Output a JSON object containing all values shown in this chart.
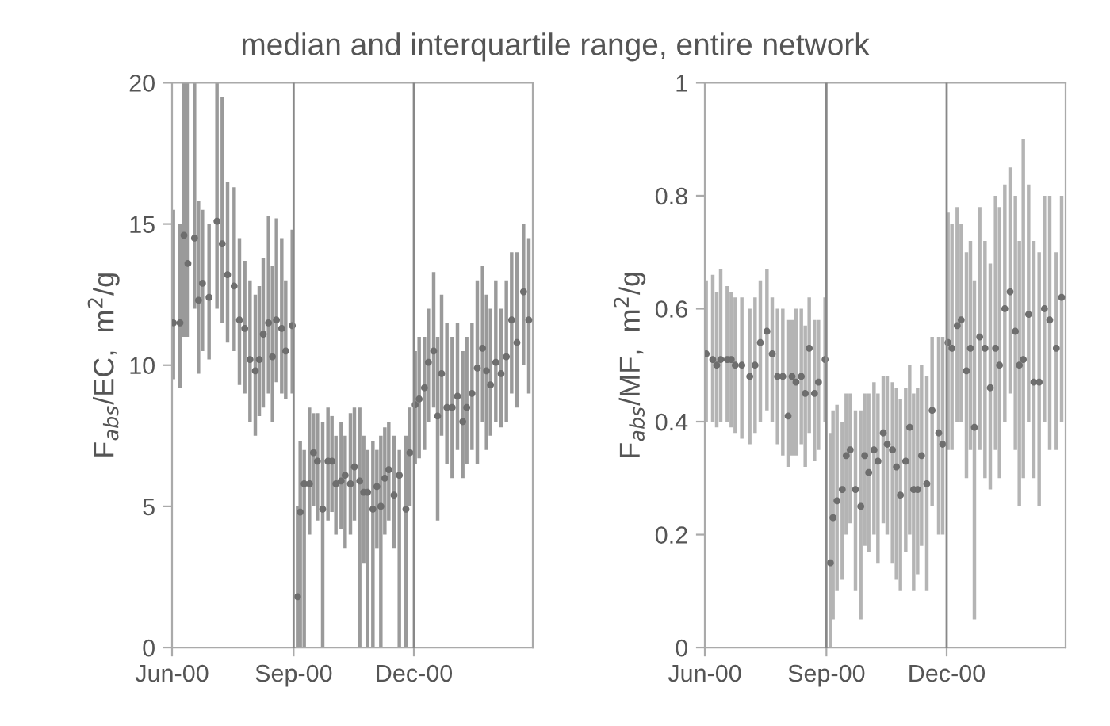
{
  "chart_data": [
    {
      "type": "scatter",
      "title": "median and interquartile range, entire network",
      "ylabel": "F$_{abs}$/EC,  m$^{2}$/g",
      "marker": "circle",
      "grid": false,
      "legend": false,
      "xlim": [
        "2000-06-01",
        "2001-03-01"
      ],
      "xticks": [
        {
          "value": "2000-06-01",
          "label": "Jun-00"
        },
        {
          "value": "2000-09-01",
          "label": "Sep-00"
        },
        {
          "value": "2000-12-01",
          "label": "Dec-00"
        }
      ],
      "ylim": [
        0,
        20
      ],
      "yticks": [
        0,
        5,
        10,
        15,
        20
      ],
      "ref_lines": [
        {
          "axis": "x",
          "value": "2000-09-01",
          "color": "#888888"
        },
        {
          "axis": "x",
          "value": "2000-12-01",
          "color": "#888888"
        }
      ],
      "series": [
        {
          "color": "#6e6e6e",
          "x": [
            "2000-06-02",
            "2000-06-07",
            "2000-06-10",
            "2000-06-13",
            "2000-06-18",
            "2000-06-21",
            "2000-06-24",
            "2000-06-29",
            "2000-07-05",
            "2000-07-09",
            "2000-07-13",
            "2000-07-18",
            "2000-07-22",
            "2000-07-26",
            "2000-07-30",
            "2000-08-03",
            "2000-08-06",
            "2000-08-09",
            "2000-08-13",
            "2000-08-16",
            "2000-08-19",
            "2000-08-23",
            "2000-08-26",
            "2000-08-31",
            "2000-09-04",
            "2000-09-06",
            "2000-09-09",
            "2000-09-13",
            "2000-09-16",
            "2000-09-19",
            "2000-09-23",
            "2000-09-27",
            "2000-09-30",
            "2000-10-03",
            "2000-10-07",
            "2000-10-10",
            "2000-10-14",
            "2000-10-17",
            "2000-10-21",
            "2000-10-24",
            "2000-10-27",
            "2000-10-31",
            "2000-11-03",
            "2000-11-06",
            "2000-11-09",
            "2000-11-12",
            "2000-11-16",
            "2000-11-20",
            "2000-11-25",
            "2000-11-28",
            "2000-12-02",
            "2000-12-05",
            "2000-12-09",
            "2000-12-12",
            "2000-12-16",
            "2000-12-19",
            "2000-12-22",
            "2000-12-26",
            "2000-12-30",
            "2001-01-03",
            "2001-01-07",
            "2001-01-10",
            "2001-01-14",
            "2001-01-18",
            "2001-01-22",
            "2001-01-25",
            "2001-01-28",
            "2001-02-01",
            "2001-02-05",
            "2001-02-09",
            "2001-02-13",
            "2001-02-17",
            "2001-02-22",
            "2001-02-26"
          ],
          "values": [
            11.5,
            11.5,
            14.6,
            13.6,
            14.5,
            12.3,
            12.9,
            12.4,
            15.1,
            14.3,
            13.2,
            12.8,
            11.6,
            11.3,
            10.2,
            9.8,
            10.2,
            11.1,
            11.5,
            10.3,
            11.6,
            11.3,
            10.5,
            11.4,
            1.8,
            4.8,
            5.8,
            5.8,
            6.9,
            6.6,
            4.9,
            6.6,
            6.6,
            5.8,
            5.9,
            6.1,
            5.8,
            6.4,
            5.9,
            5.5,
            5.5,
            4.9,
            5.7,
            5.0,
            6.0,
            6.3,
            5.4,
            6.1,
            4.9,
            6.9,
            8.6,
            8.8,
            9.2,
            10.1,
            10.5,
            8.2,
            9.7,
            8.5,
            8.5,
            8.9,
            8.0,
            8.5,
            9.0,
            9.9,
            10.6,
            9.8,
            9.3,
            10.1,
            9.7,
            10.3,
            11.6,
            10.8,
            12.6,
            11.6
          ],
          "errors": [
            [
              9.5,
              15.5
            ],
            [
              9.2,
              15
            ],
            [
              11,
              20
            ],
            [
              11,
              20
            ],
            [
              12,
              20
            ],
            [
              9.7,
              15.8
            ],
            [
              10.5,
              15.5
            ],
            [
              10.2,
              15
            ],
            [
              12,
              20
            ],
            [
              11.5,
              19.5
            ],
            [
              10.8,
              16.5
            ],
            [
              10.5,
              16.3
            ],
            [
              9.3,
              14.5
            ],
            [
              9,
              13.7
            ],
            [
              8,
              13
            ],
            [
              7.5,
              12.5
            ],
            [
              8.2,
              12.8
            ],
            [
              8.5,
              13.8
            ],
            [
              9,
              15.3
            ],
            [
              8,
              13.5
            ],
            [
              9.4,
              15.2
            ],
            [
              9,
              14.5
            ],
            [
              8.8,
              13
            ],
            [
              9,
              14.8
            ],
            [
              0,
              5
            ],
            [
              0,
              7.3
            ],
            [
              0,
              7
            ],
            [
              4,
              8.5
            ],
            [
              5,
              8.3
            ],
            [
              4.5,
              8.3
            ],
            [
              0,
              8
            ],
            [
              4.5,
              8.5
            ],
            [
              4.8,
              8.2
            ],
            [
              4,
              7.5
            ],
            [
              4.2,
              8
            ],
            [
              3.5,
              7.5
            ],
            [
              4,
              8.3
            ],
            [
              4.5,
              8.5
            ],
            [
              0,
              8.5
            ],
            [
              3,
              7.5
            ],
            [
              0,
              7
            ],
            [
              0,
              7.3
            ],
            [
              3.5,
              7
            ],
            [
              0,
              7.5
            ],
            [
              4,
              7.8
            ],
            [
              4.5,
              8
            ],
            [
              3.5,
              7.5
            ],
            [
              0,
              7
            ],
            [
              0,
              7.5
            ],
            [
              5,
              8.5
            ],
            [
              6.5,
              10.5
            ],
            [
              6.7,
              11
            ],
            [
              7,
              11
            ],
            [
              8,
              12
            ],
            [
              8.5,
              13.3
            ],
            [
              4.5,
              11
            ],
            [
              7.5,
              12.5
            ],
            [
              6.5,
              11.5
            ],
            [
              6,
              11
            ],
            [
              7,
              11.5
            ],
            [
              6,
              10.5
            ],
            [
              6.5,
              11
            ],
            [
              7,
              11.5
            ],
            [
              6.5,
              13
            ],
            [
              8,
              13.5
            ],
            [
              7,
              12.5
            ],
            [
              7.5,
              12
            ],
            [
              8,
              13
            ],
            [
              7.8,
              12
            ],
            [
              8,
              13
            ],
            [
              9,
              14
            ],
            [
              8.5,
              14
            ],
            [
              10,
              15
            ],
            [
              9,
              14.5
            ]
          ]
        }
      ]
    },
    {
      "type": "scatter",
      "ylabel": "F$_{abs}$/MF,  m$^{2}$/g",
      "marker": "circle",
      "grid": false,
      "legend": false,
      "xlim": [
        "2000-06-01",
        "2001-03-01"
      ],
      "xticks": [
        {
          "value": "2000-06-01",
          "label": "Jun-00"
        },
        {
          "value": "2000-09-01",
          "label": "Sep-00"
        },
        {
          "value": "2000-12-01",
          "label": "Dec-00"
        }
      ],
      "ylim": [
        0,
        1
      ],
      "yticks": [
        0,
        0.2,
        0.4,
        0.6,
        0.8,
        1
      ],
      "ref_lines": [
        {
          "axis": "x",
          "value": "2000-09-01",
          "color": "#888888"
        },
        {
          "axis": "x",
          "value": "2000-12-01",
          "color": "#888888"
        }
      ],
      "series": [
        {
          "color": "#6e6e6e",
          "x": [
            "2000-06-02",
            "2000-06-07",
            "2000-06-10",
            "2000-06-13",
            "2000-06-18",
            "2000-06-21",
            "2000-06-24",
            "2000-06-29",
            "2000-07-05",
            "2000-07-09",
            "2000-07-13",
            "2000-07-18",
            "2000-07-22",
            "2000-07-26",
            "2000-07-30",
            "2000-08-03",
            "2000-08-06",
            "2000-08-09",
            "2000-08-13",
            "2000-08-16",
            "2000-08-19",
            "2000-08-23",
            "2000-08-26",
            "2000-08-31",
            "2000-09-04",
            "2000-09-06",
            "2000-09-09",
            "2000-09-13",
            "2000-09-16",
            "2000-09-19",
            "2000-09-23",
            "2000-09-27",
            "2000-09-30",
            "2000-10-03",
            "2000-10-07",
            "2000-10-10",
            "2000-10-14",
            "2000-10-17",
            "2000-10-21",
            "2000-10-24",
            "2000-10-27",
            "2000-10-31",
            "2000-11-03",
            "2000-11-06",
            "2000-11-09",
            "2000-11-12",
            "2000-11-16",
            "2000-11-20",
            "2000-11-25",
            "2000-11-28",
            "2000-12-02",
            "2000-12-05",
            "2000-12-09",
            "2000-12-12",
            "2000-12-16",
            "2000-12-19",
            "2000-12-22",
            "2000-12-26",
            "2000-12-30",
            "2001-01-03",
            "2001-01-07",
            "2001-01-10",
            "2001-01-14",
            "2001-01-18",
            "2001-01-22",
            "2001-01-25",
            "2001-01-28",
            "2001-02-01",
            "2001-02-05",
            "2001-02-09",
            "2001-02-13",
            "2001-02-17",
            "2001-02-22",
            "2001-02-26"
          ],
          "values": [
            0.52,
            0.51,
            0.5,
            0.51,
            0.51,
            0.51,
            0.5,
            0.5,
            0.48,
            0.5,
            0.54,
            0.56,
            0.52,
            0.48,
            0.48,
            0.41,
            0.48,
            0.47,
            0.48,
            0.45,
            0.53,
            0.45,
            0.47,
            0.51,
            0.15,
            0.23,
            0.26,
            0.28,
            0.34,
            0.35,
            0.28,
            0.25,
            0.34,
            0.31,
            0.35,
            0.33,
            0.38,
            0.36,
            0.35,
            0.32,
            0.27,
            0.33,
            0.39,
            0.28,
            0.28,
            0.34,
            0.29,
            0.42,
            0.38,
            0.36,
            0.54,
            0.53,
            0.57,
            0.58,
            0.49,
            0.53,
            0.39,
            0.55,
            0.53,
            0.46,
            0.53,
            0.5,
            0.6,
            0.63,
            0.56,
            0.5,
            0.51,
            0.59,
            0.47,
            0.47,
            0.6,
            0.58,
            0.53,
            0.62
          ],
          "errors": [
            [
              0.4,
              0.65
            ],
            [
              0.4,
              0.66
            ],
            [
              0.39,
              0.63
            ],
            [
              0.4,
              0.67
            ],
            [
              0.4,
              0.64
            ],
            [
              0.39,
              0.63
            ],
            [
              0.38,
              0.62
            ],
            [
              0.37,
              0.62
            ],
            [
              0.36,
              0.6
            ],
            [
              0.38,
              0.62
            ],
            [
              0.4,
              0.65
            ],
            [
              0.42,
              0.67
            ],
            [
              0.4,
              0.62
            ],
            [
              0.36,
              0.6
            ],
            [
              0.34,
              0.6
            ],
            [
              0.32,
              0.58
            ],
            [
              0.34,
              0.58
            ],
            [
              0.34,
              0.6
            ],
            [
              0.36,
              0.6
            ],
            [
              0.32,
              0.57
            ],
            [
              0.38,
              0.62
            ],
            [
              0.33,
              0.58
            ],
            [
              0.35,
              0.58
            ],
            [
              0.4,
              0.62
            ],
            [
              0,
              0.38
            ],
            [
              0.05,
              0.42
            ],
            [
              0.1,
              0.43
            ],
            [
              0.12,
              0.4
            ],
            [
              0.2,
              0.45
            ],
            [
              0.22,
              0.45
            ],
            [
              0.1,
              0.42
            ],
            [
              0.05,
              0.42
            ],
            [
              0.18,
              0.45
            ],
            [
              0.17,
              0.45
            ],
            [
              0.2,
              0.47
            ],
            [
              0.15,
              0.45
            ],
            [
              0.22,
              0.48
            ],
            [
              0.2,
              0.48
            ],
            [
              0.15,
              0.47
            ],
            [
              0.12,
              0.46
            ],
            [
              0.1,
              0.44
            ],
            [
              0.17,
              0.46
            ],
            [
              0.2,
              0.5
            ],
            [
              0.1,
              0.45
            ],
            [
              0.13,
              0.46
            ],
            [
              0.18,
              0.5
            ],
            [
              0.1,
              0.48
            ],
            [
              0.25,
              0.55
            ],
            [
              0.2,
              0.55
            ],
            [
              0.2,
              0.55
            ],
            [
              0.35,
              0.77
            ],
            [
              0.35,
              0.75
            ],
            [
              0.4,
              0.78
            ],
            [
              0.4,
              0.75
            ],
            [
              0.3,
              0.7
            ],
            [
              0.35,
              0.72
            ],
            [
              0.05,
              0.65
            ],
            [
              0.35,
              0.78
            ],
            [
              0.3,
              0.72
            ],
            [
              0.28,
              0.68
            ],
            [
              0.35,
              0.8
            ],
            [
              0.3,
              0.78
            ],
            [
              0.4,
              0.82
            ],
            [
              0.45,
              0.85
            ],
            [
              0.35,
              0.8
            ],
            [
              0.25,
              0.72
            ],
            [
              0.3,
              0.9
            ],
            [
              0.4,
              0.82
            ],
            [
              0.3,
              0.72
            ],
            [
              0.25,
              0.7
            ],
            [
              0.4,
              0.8
            ],
            [
              0.35,
              0.8
            ],
            [
              0.35,
              0.7
            ],
            [
              0.4,
              0.8
            ]
          ]
        }
      ]
    }
  ]
}
